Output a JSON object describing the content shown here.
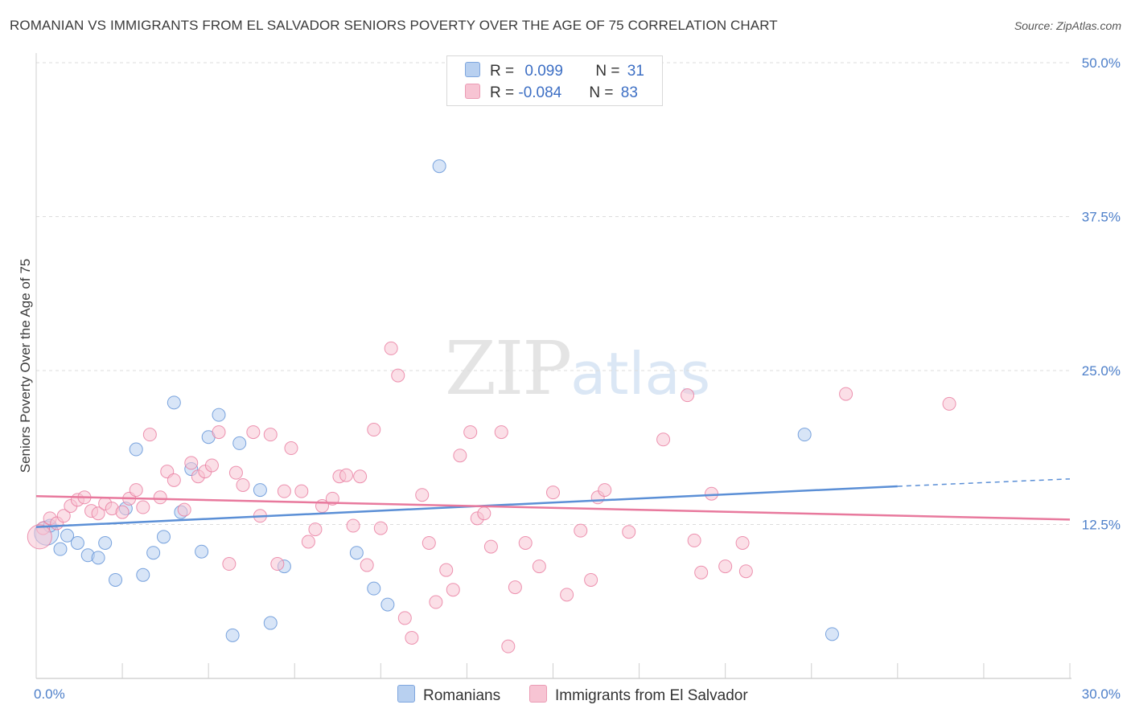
{
  "header": {
    "title": "ROMANIAN VS IMMIGRANTS FROM EL SALVADOR SENIORS POVERTY OVER THE AGE OF 75 CORRELATION CHART",
    "source": "Source: ZipAtlas.com"
  },
  "watermark": {
    "zip": "ZIP",
    "atlas": "atlas"
  },
  "legend": {
    "rows": [
      {
        "r_label": "R = ",
        "r_value": "0.099",
        "n_label": "N = ",
        "n_value": "31",
        "color": "#a9c7ef"
      },
      {
        "r_label": "R = ",
        "r_value": "-0.084",
        "n_label": "N = ",
        "n_value": "83",
        "color": "#f6b8cb"
      }
    ]
  },
  "chart_data": {
    "type": "scatter",
    "title": "ROMANIAN VS IMMIGRANTS FROM EL SALVADOR SENIORS POVERTY OVER THE AGE OF 75 CORRELATION CHART",
    "ylabel": "Seniors Poverty Over the Age of 75",
    "xlabel": "",
    "xlim": [
      0,
      30
    ],
    "ylim": [
      0,
      50
    ],
    "x_tick_labels": [
      "0.0%",
      "30.0%"
    ],
    "y_tick_labels": [
      "12.5%",
      "25.0%",
      "37.5%",
      "50.0%"
    ],
    "y_ticks": [
      12.5,
      25.0,
      37.5,
      50.0
    ],
    "grid": "horizontal dashed",
    "legend_position": "bottom",
    "series": [
      {
        "name": "Romanians",
        "color": "#5b8fd6",
        "fill": "#b8d0f0",
        "r": 0.099,
        "n": 31,
        "trend": {
          "x0": 0.0,
          "y0": 12.3,
          "x1": 25.0,
          "y1": 15.6,
          "dash_to_x": 30.0,
          "dash_to_y": 16.2
        },
        "points": [
          [
            0.3,
            11.8
          ],
          [
            0.4,
            12.4
          ],
          [
            0.7,
            10.5
          ],
          [
            0.9,
            11.6
          ],
          [
            1.2,
            11.0
          ],
          [
            1.5,
            10.0
          ],
          [
            1.8,
            9.8
          ],
          [
            2.0,
            11.0
          ],
          [
            2.3,
            8.0
          ],
          [
            2.6,
            13.8
          ],
          [
            2.9,
            18.6
          ],
          [
            3.1,
            8.4
          ],
          [
            3.4,
            10.2
          ],
          [
            3.7,
            11.5
          ],
          [
            4.0,
            22.4
          ],
          [
            4.2,
            13.5
          ],
          [
            4.5,
            17.0
          ],
          [
            4.8,
            10.3
          ],
          [
            5.0,
            19.6
          ],
          [
            5.3,
            21.4
          ],
          [
            5.7,
            3.5
          ],
          [
            5.9,
            19.1
          ],
          [
            6.5,
            15.3
          ],
          [
            6.8,
            4.5
          ],
          [
            7.2,
            9.1
          ],
          [
            9.3,
            10.2
          ],
          [
            9.8,
            7.3
          ],
          [
            10.2,
            6.0
          ],
          [
            11.7,
            41.6
          ],
          [
            22.3,
            19.8
          ],
          [
            23.1,
            3.6
          ]
        ]
      },
      {
        "name": "Immigrants from El Salvador",
        "color": "#e8799d",
        "fill": "#f7c4d3",
        "r": -0.084,
        "n": 83,
        "trend": {
          "x0": 0.0,
          "y0": 14.8,
          "x1": 30.0,
          "y1": 12.9
        },
        "points": [
          [
            0.2,
            12.2
          ],
          [
            0.4,
            13.0
          ],
          [
            0.6,
            12.6
          ],
          [
            0.8,
            13.2
          ],
          [
            1.0,
            14.0
          ],
          [
            1.2,
            14.5
          ],
          [
            1.4,
            14.7
          ],
          [
            1.6,
            13.6
          ],
          [
            1.8,
            13.4
          ],
          [
            2.0,
            14.2
          ],
          [
            2.2,
            13.8
          ],
          [
            2.5,
            13.5
          ],
          [
            2.7,
            14.6
          ],
          [
            2.9,
            15.3
          ],
          [
            3.1,
            13.9
          ],
          [
            3.3,
            19.8
          ],
          [
            3.6,
            14.7
          ],
          [
            3.8,
            16.8
          ],
          [
            4.0,
            16.1
          ],
          [
            4.3,
            13.7
          ],
          [
            4.5,
            17.5
          ],
          [
            4.7,
            16.4
          ],
          [
            4.9,
            16.8
          ],
          [
            5.1,
            17.3
          ],
          [
            5.3,
            20.0
          ],
          [
            5.6,
            9.3
          ],
          [
            5.8,
            16.7
          ],
          [
            6.0,
            15.7
          ],
          [
            6.3,
            20.0
          ],
          [
            6.5,
            13.2
          ],
          [
            6.8,
            19.8
          ],
          [
            7.0,
            9.3
          ],
          [
            7.2,
            15.2
          ],
          [
            7.4,
            18.7
          ],
          [
            7.7,
            15.2
          ],
          [
            7.9,
            11.1
          ],
          [
            8.1,
            12.1
          ],
          [
            8.3,
            14.0
          ],
          [
            8.6,
            14.6
          ],
          [
            8.8,
            16.4
          ],
          [
            9.0,
            16.5
          ],
          [
            9.2,
            12.4
          ],
          [
            9.4,
            16.4
          ],
          [
            9.6,
            9.2
          ],
          [
            9.8,
            20.2
          ],
          [
            10.0,
            12.2
          ],
          [
            10.3,
            26.8
          ],
          [
            10.5,
            24.6
          ],
          [
            10.7,
            4.9
          ],
          [
            10.9,
            3.3
          ],
          [
            11.2,
            14.9
          ],
          [
            11.4,
            11.0
          ],
          [
            11.6,
            6.2
          ],
          [
            11.9,
            8.8
          ],
          [
            12.1,
            7.2
          ],
          [
            12.3,
            18.1
          ],
          [
            12.6,
            20.0
          ],
          [
            12.8,
            13.0
          ],
          [
            13.0,
            13.4
          ],
          [
            13.2,
            10.7
          ],
          [
            13.5,
            20.0
          ],
          [
            13.7,
            2.6
          ],
          [
            13.9,
            7.4
          ],
          [
            14.2,
            11.0
          ],
          [
            14.6,
            9.1
          ],
          [
            15.0,
            15.1
          ],
          [
            15.4,
            6.8
          ],
          [
            15.8,
            12.0
          ],
          [
            16.1,
            8.0
          ],
          [
            16.3,
            14.7
          ],
          [
            16.5,
            15.3
          ],
          [
            17.2,
            11.9
          ],
          [
            18.2,
            19.4
          ],
          [
            18.9,
            23.0
          ],
          [
            19.1,
            11.2
          ],
          [
            19.3,
            8.6
          ],
          [
            19.6,
            15.0
          ],
          [
            20.0,
            9.1
          ],
          [
            20.6,
            8.7
          ],
          [
            20.5,
            11.0
          ],
          [
            23.5,
            23.1
          ],
          [
            26.5,
            22.3
          ],
          [
            0.1,
            11.5
          ]
        ]
      }
    ]
  },
  "bottom_legend": [
    {
      "label": "Romanians",
      "color": "#b8d0f0",
      "border": "#7ea6de"
    },
    {
      "label": "Immigrants from El Salvador",
      "color": "#f7c4d3",
      "border": "#eb9bb4"
    }
  ]
}
